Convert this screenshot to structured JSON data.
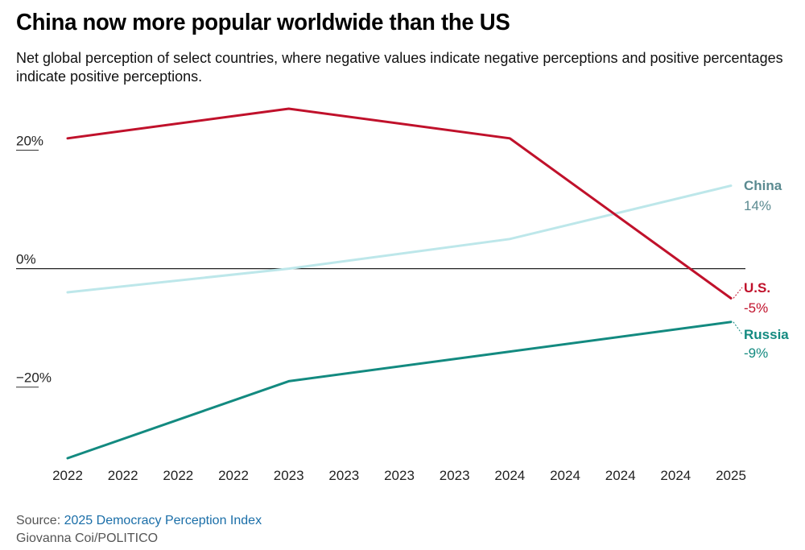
{
  "title": "China now more popular worldwide than the US",
  "subtitle": "Net global perception of select countries, where negative values indicate negative perceptions and positive percentages indicate positive perceptions.",
  "footer": {
    "source_label": "Source:",
    "source_link": "2025 Democracy Perception Index",
    "credit": "Giovanna Coi/POLITICO"
  },
  "colors": {
    "us": "#c0112b",
    "china_line": "#bde7ea",
    "china_label": "#5a8a90",
    "russia": "#138a80",
    "zero_line": "#222222"
  },
  "chart_data": {
    "type": "line",
    "x": [
      "2022",
      "2022",
      "2022",
      "2022",
      "2023",
      "2023",
      "2023",
      "2023",
      "2024",
      "2024",
      "2024",
      "2024",
      "2025"
    ],
    "ylim": [
      -32,
      27
    ],
    "yticks": [
      {
        "value": 20,
        "label": "20%"
      },
      {
        "value": 0,
        "label": "0%"
      },
      {
        "value": -20,
        "label": "−20%"
      }
    ],
    "series": [
      {
        "name": "U.S.",
        "end_label": "-5%",
        "values": [
          22,
          null,
          null,
          null,
          27,
          null,
          null,
          null,
          22,
          null,
          null,
          null,
          -5
        ]
      },
      {
        "name": "China",
        "end_label": "14%",
        "values": [
          -4,
          null,
          null,
          null,
          0,
          null,
          null,
          null,
          5,
          null,
          null,
          null,
          14
        ]
      },
      {
        "name": "Russia",
        "end_label": "-9%",
        "values": [
          -32,
          null,
          null,
          null,
          -19,
          null,
          null,
          null,
          -14,
          null,
          null,
          null,
          -9
        ]
      }
    ]
  }
}
